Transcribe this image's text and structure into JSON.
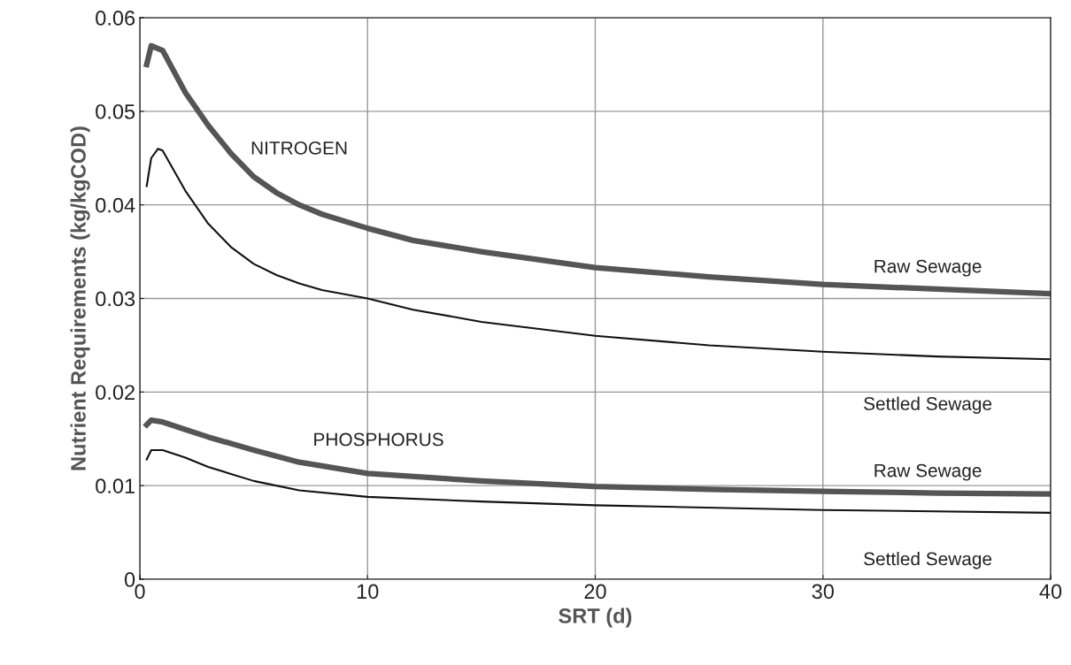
{
  "chart_data": {
    "type": "line",
    "xlabel": "SRT (d)",
    "ylabel": "Nutrient Requirements (kg/kgCOD)",
    "xlim": [
      0,
      40
    ],
    "xticks": [
      0,
      10,
      20,
      30,
      40
    ],
    "ylim": [
      0,
      0.06
    ],
    "yticks": [
      0,
      0.01,
      0.02,
      0.03,
      0.04,
      0.05,
      0.06
    ],
    "grid": true,
    "series": [
      {
        "name": "Raw Sewage",
        "color": "#555555",
        "x": [
          0.3,
          0.5,
          1,
          2,
          3,
          4,
          5,
          6,
          7,
          8,
          10,
          12,
          15,
          20,
          25,
          30,
          35,
          40
        ],
        "values": [
          0.055,
          0.057,
          0.0565,
          0.052,
          0.0485,
          0.0455,
          0.043,
          0.0413,
          0.04,
          0.039,
          0.0375,
          0.0362,
          0.035,
          0.0333,
          0.0323,
          0.0315,
          0.031,
          0.0305
        ]
      },
      {
        "name": "Settled Sewage",
        "color": "#111111",
        "x": [
          0.3,
          0.5,
          0.8,
          1,
          2,
          3,
          4,
          5,
          6,
          7,
          8,
          10,
          12,
          15,
          20,
          25,
          30,
          35,
          40
        ],
        "values": [
          0.042,
          0.045,
          0.046,
          0.0458,
          0.0415,
          0.038,
          0.0355,
          0.0337,
          0.0325,
          0.0316,
          0.0309,
          0.03,
          0.0288,
          0.0275,
          0.026,
          0.025,
          0.0243,
          0.0238,
          0.0235
        ]
      },
      {
        "name": "Raw Sewage",
        "color": "#555555",
        "x": [
          0.3,
          0.5,
          1,
          2,
          3,
          5,
          7,
          10,
          15,
          20,
          25,
          30,
          35,
          40
        ],
        "values": [
          0.0165,
          0.017,
          0.0168,
          0.016,
          0.0152,
          0.0138,
          0.0125,
          0.0113,
          0.0105,
          0.0099,
          0.0096,
          0.0094,
          0.0092,
          0.0091
        ]
      },
      {
        "name": "Settled Sewage",
        "color": "#111111",
        "x": [
          0.3,
          0.5,
          1,
          2,
          3,
          5,
          7,
          10,
          15,
          20,
          30,
          40
        ],
        "values": [
          0.0128,
          0.0138,
          0.0138,
          0.013,
          0.012,
          0.0105,
          0.0095,
          0.0088,
          0.0083,
          0.0079,
          0.0074,
          0.0071
        ]
      }
    ],
    "annotations": [
      "NITROGEN",
      "PHOSPHORUS"
    ]
  }
}
